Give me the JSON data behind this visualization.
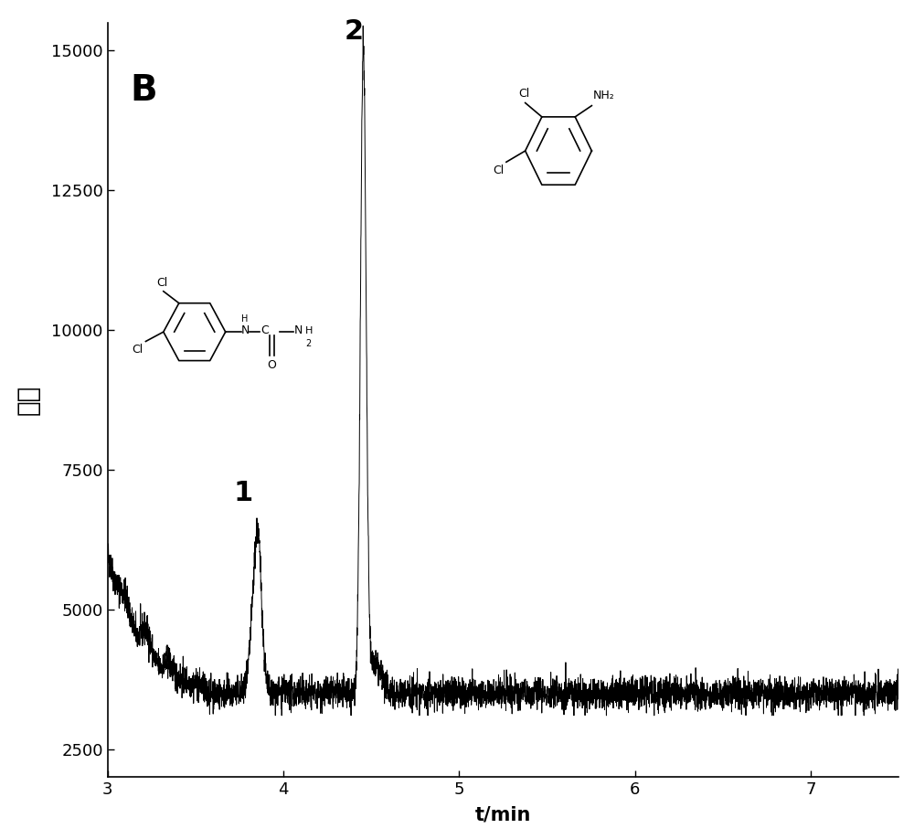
{
  "xlim": [
    3.0,
    7.5
  ],
  "ylim": [
    2000,
    15500
  ],
  "yticks": [
    2500,
    5000,
    7500,
    10000,
    12500,
    15000
  ],
  "xticks": [
    3,
    4,
    5,
    6,
    7
  ],
  "xlabel": "t/min",
  "ylabel": "丰度",
  "label_B": "B",
  "label_1": "1",
  "label_2": "2",
  "peak1_x": 3.855,
  "peak1_y": 6300,
  "peak2_x": 4.455,
  "peak2_y": 14900,
  "baseline": 3500,
  "noise_amplitude": 140,
  "seed": 42,
  "line_color": "#000000",
  "background_color": "#ffffff",
  "figsize": [
    10.0,
    9.18
  ],
  "dpi": 100
}
